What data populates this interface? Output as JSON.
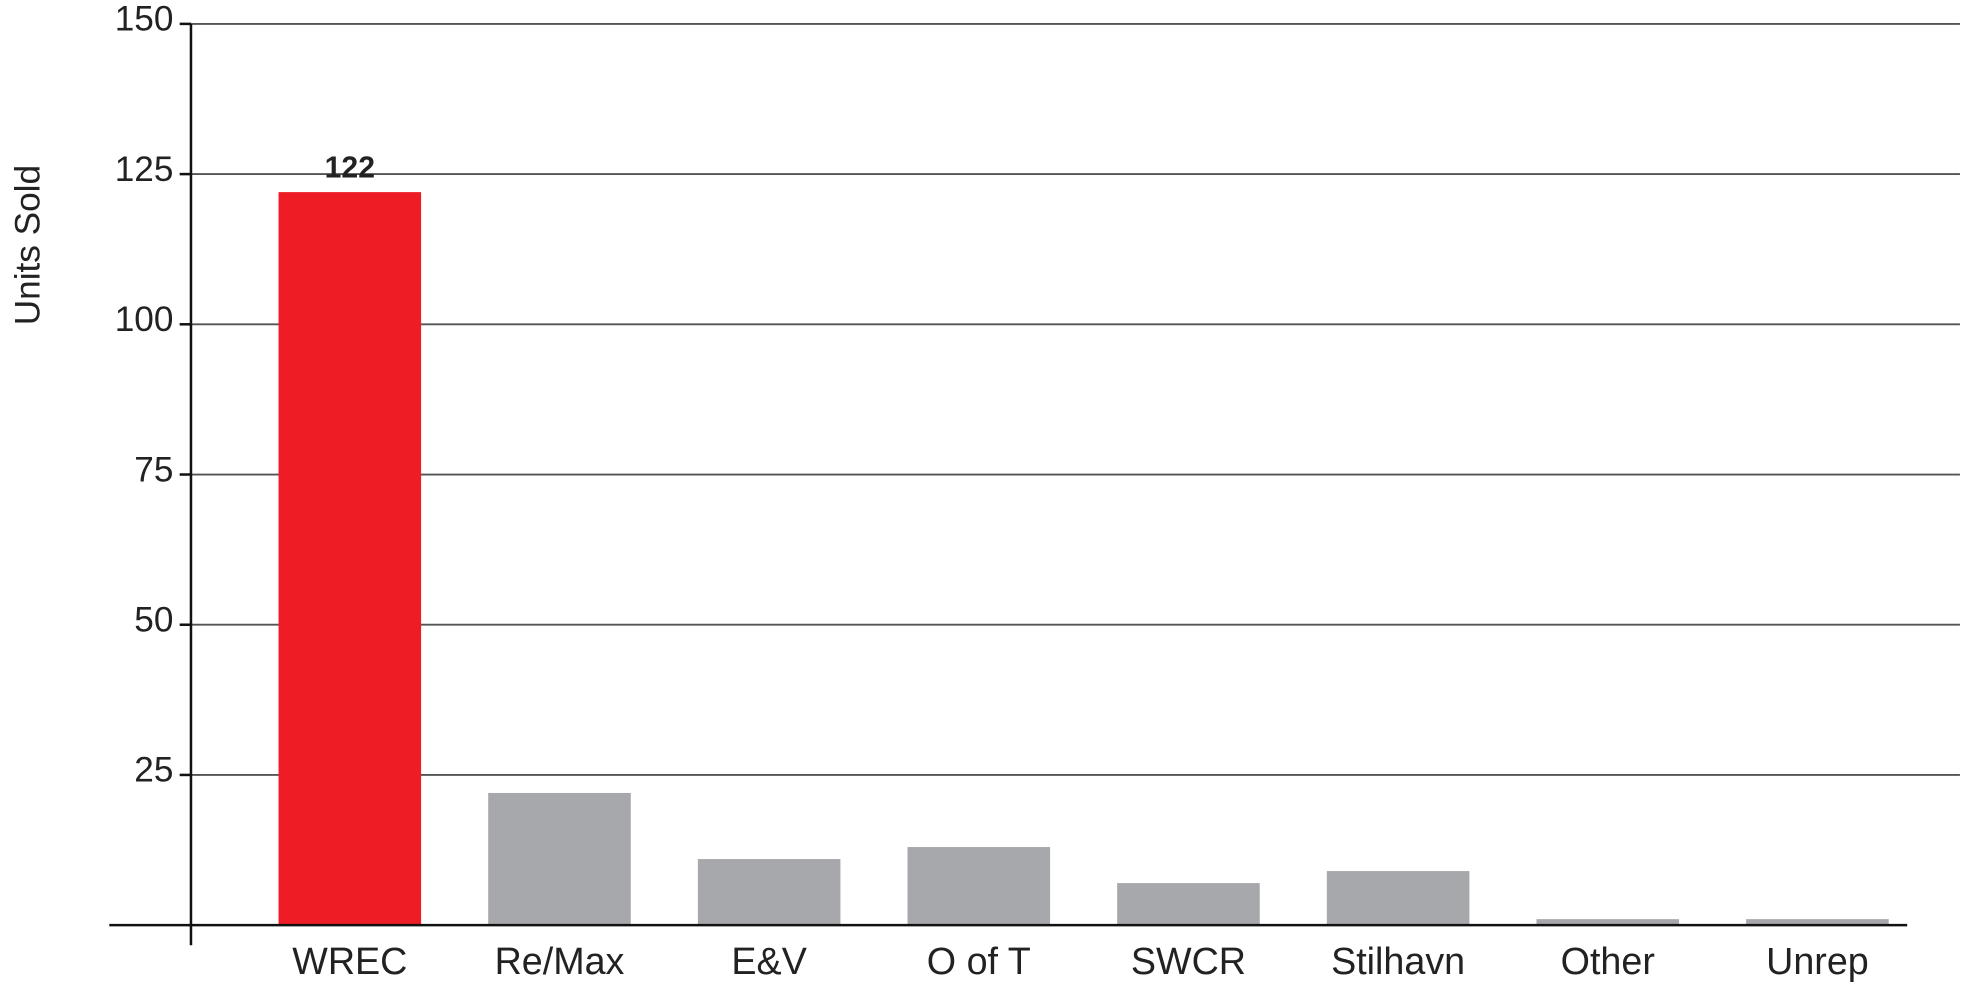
{
  "chart_data": {
    "type": "bar",
    "y_label": "Units Sold",
    "categories": [
      "WREC",
      "Re/Max",
      "E&V",
      "O of T",
      "SWCR",
      "Stilhavn",
      "Other",
      "Unrep"
    ],
    "values": [
      122,
      22,
      11,
      13,
      7,
      9,
      1,
      1
    ],
    "colors": [
      "#ee1c25",
      "#a7a8ac",
      "#a7a8ac",
      "#a7a8ac",
      "#a7a8ac",
      "#a7a8ac",
      "#a7a8ac",
      "#a7a8ac"
    ],
    "data_label_indices": [
      0
    ],
    "ylim": [
      0,
      150
    ],
    "yticks": [
      25,
      50,
      75,
      100,
      125,
      150
    ],
    "grid": true
  }
}
